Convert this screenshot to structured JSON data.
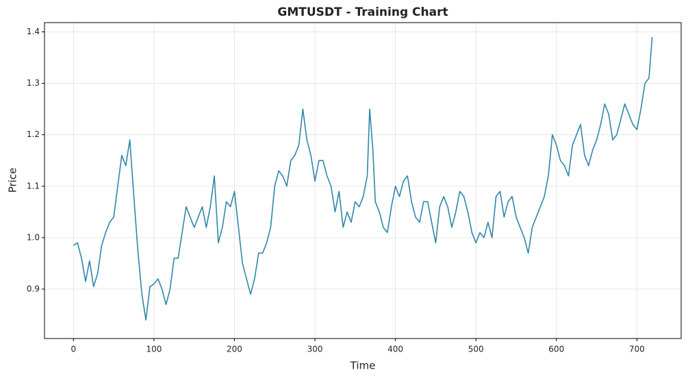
{
  "chart_data": {
    "type": "line",
    "title": "GMTUSDT - Training Chart",
    "x_label": "Time",
    "y_label": "Price",
    "color": "#2e86ab",
    "grid": true,
    "xlim": [
      -36,
      755
    ],
    "ylim": [
      0.804,
      1.418
    ],
    "xticks": [
      0,
      100,
      200,
      300,
      400,
      500,
      600,
      700
    ],
    "yticks": [
      0.9,
      {
        "value": 1,
        "label": "1.0"
      },
      1.1,
      1.2,
      1.3,
      1.4
    ],
    "x": [
      0,
      5,
      10,
      15,
      20,
      25,
      30,
      35,
      40,
      45,
      50,
      55,
      60,
      65,
      70,
      75,
      80,
      85,
      90,
      95,
      100,
      105,
      110,
      115,
      120,
      125,
      130,
      135,
      140,
      145,
      150,
      155,
      160,
      165,
      170,
      175,
      180,
      185,
      190,
      195,
      200,
      205,
      210,
      215,
      220,
      225,
      230,
      235,
      240,
      245,
      250,
      255,
      260,
      265,
      270,
      275,
      280,
      285,
      290,
      295,
      300,
      305,
      310,
      315,
      320,
      325,
      330,
      335,
      340,
      345,
      350,
      355,
      360,
      365,
      368,
      372,
      375,
      380,
      385,
      390,
      395,
      400,
      405,
      410,
      415,
      420,
      425,
      430,
      435,
      440,
      445,
      450,
      455,
      460,
      465,
      470,
      475,
      480,
      485,
      490,
      495,
      500,
      505,
      510,
      515,
      520,
      525,
      530,
      535,
      540,
      545,
      550,
      555,
      560,
      565,
      570,
      575,
      580,
      585,
      590,
      595,
      600,
      605,
      610,
      615,
      620,
      625,
      630,
      635,
      640,
      645,
      650,
      655,
      660,
      665,
      670,
      675,
      680,
      685,
      690,
      695,
      700,
      705,
      710,
      715,
      719
    ],
    "values": [
      0.985,
      0.99,
      0.96,
      0.915,
      0.955,
      0.905,
      0.93,
      0.985,
      1.01,
      1.03,
      1.04,
      1.1,
      1.16,
      1.14,
      1.19,
      1.08,
      0.975,
      0.89,
      0.84,
      0.905,
      0.91,
      0.92,
      0.9,
      0.87,
      0.9,
      0.96,
      0.96,
      1.01,
      1.06,
      1.04,
      1.02,
      1.04,
      1.06,
      1.02,
      1.06,
      1.12,
      0.99,
      1.02,
      1.07,
      1.06,
      1.09,
      1.02,
      0.95,
      0.92,
      0.89,
      0.92,
      0.97,
      0.97,
      0.99,
      1.02,
      1.1,
      1.13,
      1.12,
      1.1,
      1.15,
      1.16,
      1.18,
      1.25,
      1.19,
      1.16,
      1.11,
      1.15,
      1.15,
      1.12,
      1.1,
      1.05,
      1.09,
      1.02,
      1.05,
      1.03,
      1.07,
      1.06,
      1.08,
      1.12,
      1.25,
      1.17,
      1.07,
      1.05,
      1.02,
      1.01,
      1.06,
      1.1,
      1.08,
      1.11,
      1.12,
      1.07,
      1.04,
      1.03,
      1.07,
      1.07,
      1.03,
      0.99,
      1.06,
      1.08,
      1.06,
      1.02,
      1.05,
      1.09,
      1.08,
      1.05,
      1.01,
      0.99,
      1.01,
      1.0,
      1.03,
      1.0,
      1.08,
      1.09,
      1.04,
      1.07,
      1.08,
      1.04,
      1.02,
      1.0,
      0.97,
      1.02,
      1.04,
      1.06,
      1.08,
      1.12,
      1.2,
      1.18,
      1.15,
      1.14,
      1.12,
      1.18,
      1.2,
      1.22,
      1.16,
      1.14,
      1.17,
      1.19,
      1.22,
      1.26,
      1.24,
      1.19,
      1.2,
      1.23,
      1.26,
      1.24,
      1.22,
      1.21,
      1.25,
      1.3,
      1.31,
      1.39
    ]
  }
}
